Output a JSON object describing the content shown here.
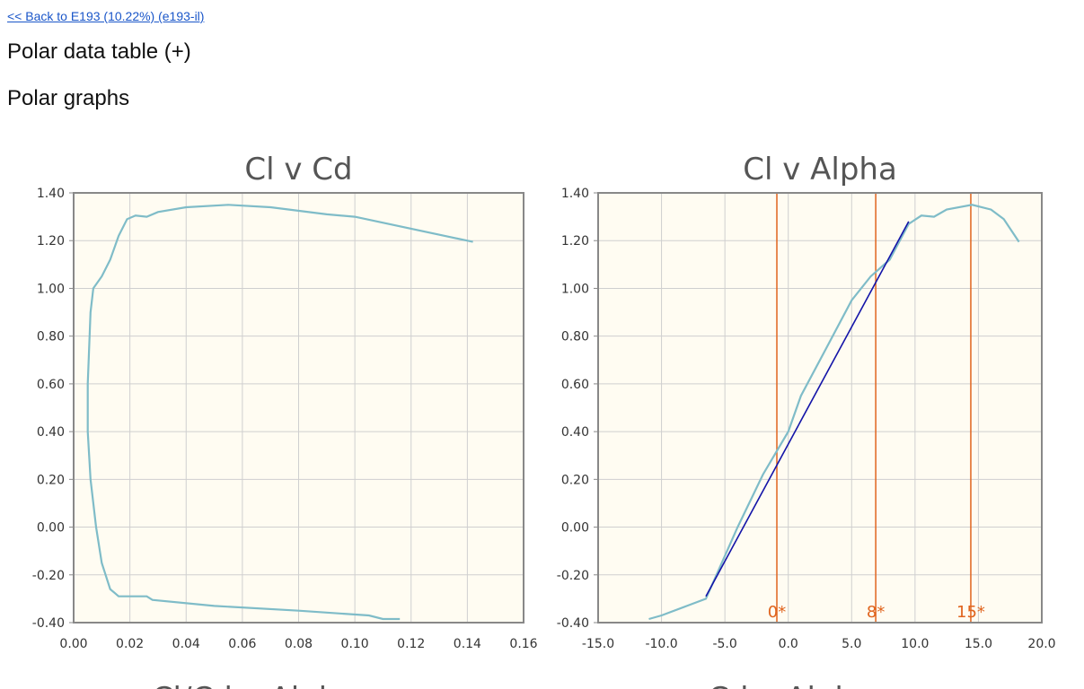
{
  "link": "<< Back to E193 (10.22%) (e193-il)",
  "headings": [
    "Polar data table (+)",
    "Polar graphs"
  ],
  "chart_data": [
    {
      "type": "line",
      "title": "Cl v Cd",
      "x": [
        0.116,
        0.11,
        0.105,
        0.08,
        0.05,
        0.028,
        0.026,
        0.016,
        0.013,
        0.01,
        0.008,
        0.006,
        0.005,
        0.005,
        0.006,
        0.007,
        0.01,
        0.013,
        0.016,
        0.019,
        0.022,
        0.026,
        0.03,
        0.04,
        0.055,
        0.07,
        0.09,
        0.1,
        0.142
      ],
      "series": [
        {
          "color": "#7fbcc8",
          "values": [
            -0.385,
            -0.385,
            -0.37,
            -0.35,
            -0.33,
            -0.305,
            -0.29,
            -0.29,
            -0.26,
            -0.15,
            0.0,
            0.2,
            0.4,
            0.6,
            0.9,
            1.0,
            1.05,
            1.12,
            1.22,
            1.29,
            1.305,
            1.3,
            1.32,
            1.34,
            1.35,
            1.34,
            1.31,
            1.3,
            1.195
          ]
        }
      ],
      "xlim": [
        0,
        0.16
      ],
      "xticks": [
        {
          "value": 0,
          "label": "0.00"
        },
        {
          "value": 0.02,
          "label": "0.02"
        },
        {
          "value": 0.04,
          "label": "0.04"
        },
        {
          "value": 0.06,
          "label": "0.06"
        },
        {
          "value": 0.08,
          "label": "0.08"
        },
        {
          "value": 0.1,
          "label": "0.10"
        },
        {
          "value": 0.12,
          "label": "0.12"
        },
        {
          "value": 0.14,
          "label": "0.14"
        },
        {
          "value": 0.16,
          "label": "0.16"
        }
      ],
      "ylim": [
        -0.4,
        1.4
      ],
      "yticks": [
        {
          "value": -0.4,
          "label": "-0.40"
        },
        {
          "value": -0.2,
          "label": "-0.20"
        },
        {
          "value": 0,
          "label": "0.00"
        },
        {
          "value": 0.2,
          "label": "0.20"
        },
        {
          "value": 0.4,
          "label": "0.40"
        },
        {
          "value": 0.6,
          "label": "0.60"
        },
        {
          "value": 0.8,
          "label": "0.80"
        },
        {
          "value": 1.0,
          "label": "1.00"
        },
        {
          "value": 1.2,
          "label": "1.20"
        },
        {
          "value": 1.4,
          "label": "1.40"
        }
      ],
      "grid": true
    },
    {
      "type": "line",
      "title": "Cl v Alpha",
      "x": [
        -11,
        -10,
        -8,
        -6.5,
        -4,
        -2,
        0,
        1,
        3,
        5,
        6.5,
        8,
        9.5,
        10.5,
        11.5,
        12.5,
        14.5,
        16,
        17,
        18.2
      ],
      "series": [
        {
          "color": "#7fbcc8",
          "values": [
            -0.385,
            -0.37,
            -0.33,
            -0.3,
            0.0,
            0.22,
            0.4,
            0.55,
            0.75,
            0.95,
            1.05,
            1.12,
            1.27,
            1.305,
            1.3,
            1.33,
            1.35,
            1.33,
            1.29,
            1.195
          ]
        }
      ],
      "fit": {
        "color": "#1414a8",
        "x": [
          -6.5,
          9.5
        ],
        "values": [
          -0.29,
          1.28
        ]
      },
      "markers": [
        {
          "value": -0.9,
          "label": "0*"
        },
        {
          "value": 6.9,
          "label": "8*"
        },
        {
          "value": 14.4,
          "label": "15*"
        }
      ],
      "marker_color": "#e0641e",
      "xlim": [
        -15,
        20
      ],
      "xticks": [
        {
          "value": -15,
          "label": "-15.0"
        },
        {
          "value": -10,
          "label": "-10.0"
        },
        {
          "value": -5,
          "label": "-5.0"
        },
        {
          "value": 0,
          "label": "0.0"
        },
        {
          "value": 5,
          "label": "5.0"
        },
        {
          "value": 10,
          "label": "10.0"
        },
        {
          "value": 15,
          "label": "15.0"
        },
        {
          "value": 20,
          "label": "20.0"
        }
      ],
      "ylim": [
        -0.4,
        1.4
      ],
      "yticks": [
        {
          "value": -0.4,
          "label": "-0.40"
        },
        {
          "value": -0.2,
          "label": "-0.20"
        },
        {
          "value": 0,
          "label": "0.00"
        },
        {
          "value": 0.2,
          "label": "0.20"
        },
        {
          "value": 0.4,
          "label": "0.40"
        },
        {
          "value": 0.6,
          "label": "0.60"
        },
        {
          "value": 0.8,
          "label": "0.80"
        },
        {
          "value": 1.0,
          "label": "1.00"
        },
        {
          "value": 1.2,
          "label": "1.20"
        },
        {
          "value": 1.4,
          "label": "1.40"
        }
      ],
      "grid": true
    }
  ],
  "more_titles": [
    "Cl/Cd v Alpha",
    "Cd v Alpha"
  ]
}
